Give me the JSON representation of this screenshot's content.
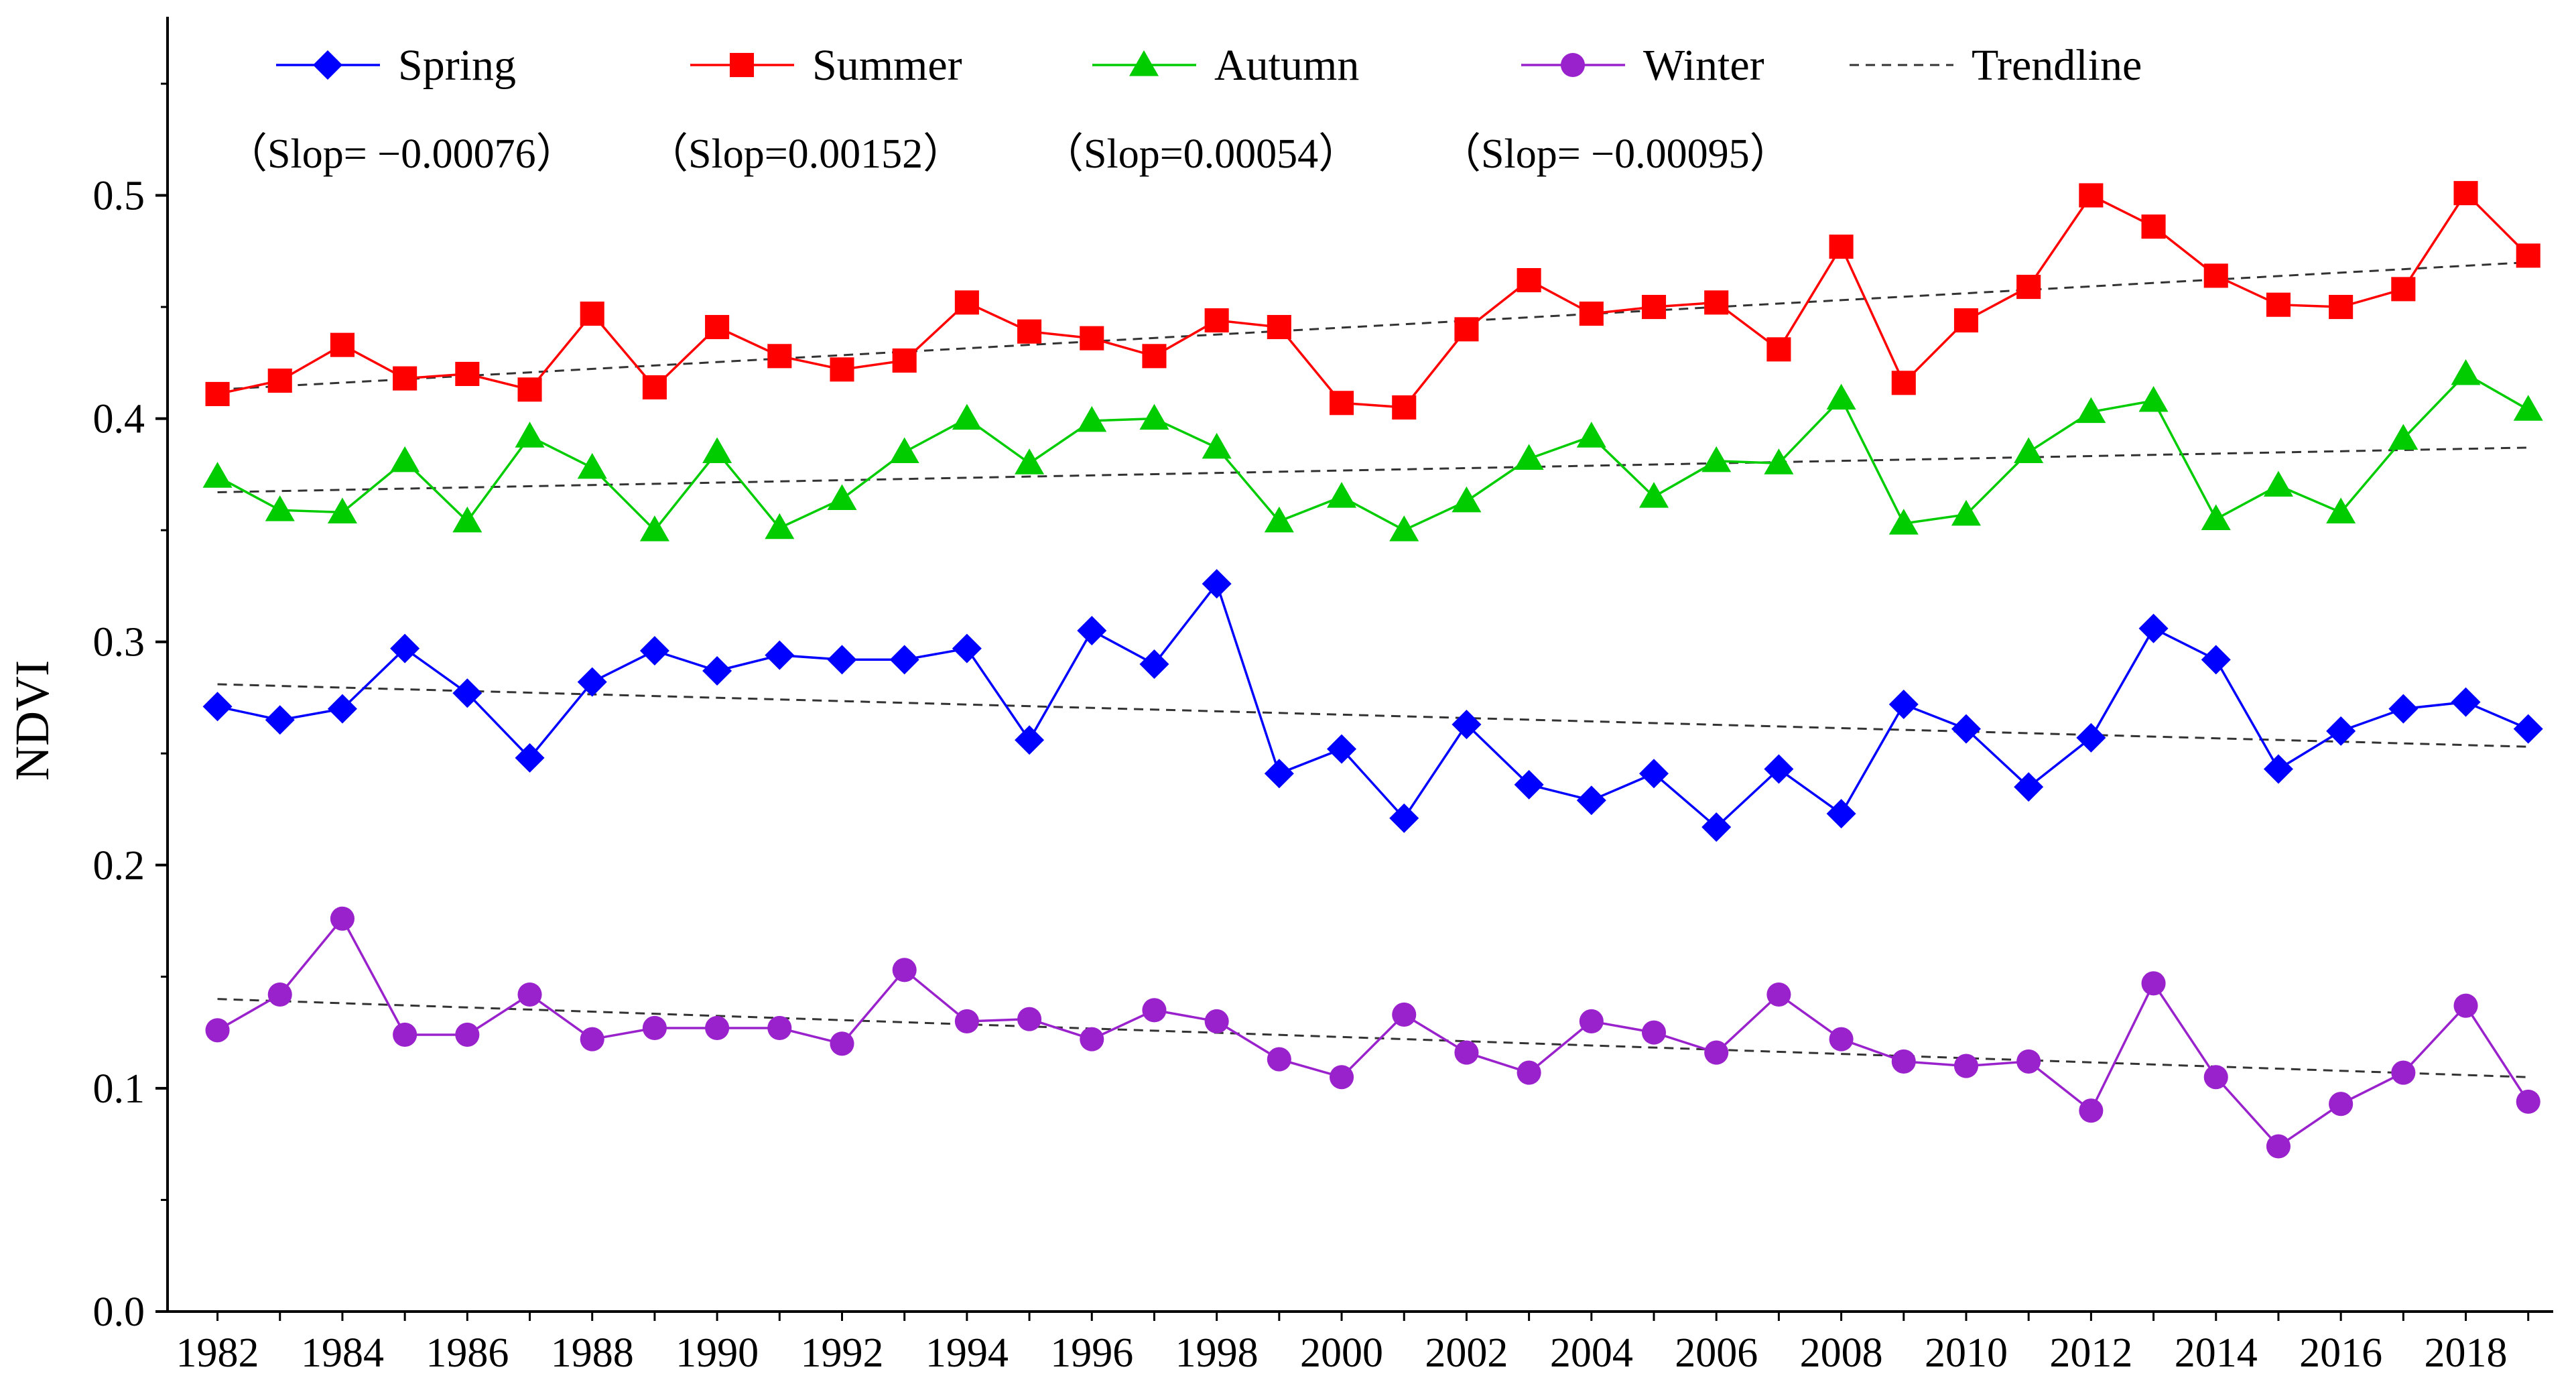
{
  "chart_data": {
    "type": "line",
    "title": "",
    "xlabel": "",
    "ylabel": "NDVI",
    "xlim": [
      1981.2,
      2019.4
    ],
    "ylim": [
      0.0,
      0.58
    ],
    "yticks": [
      0.0,
      0.1,
      0.2,
      0.3,
      0.4,
      0.5
    ],
    "ytick_labels": [
      "0.0",
      "0.1",
      "0.2",
      "0.3",
      "0.4",
      "0.5"
    ],
    "xticks": [
      1982,
      1984,
      1986,
      1988,
      1990,
      1992,
      1994,
      1996,
      1998,
      2000,
      2002,
      2004,
      2006,
      2008,
      2010,
      2012,
      2014,
      2016,
      2018
    ],
    "xtick_labels": [
      "1982",
      "1984",
      "1986",
      "1988",
      "1990",
      "1992",
      "1994",
      "1996",
      "1998",
      "2000",
      "2002",
      "2004",
      "2006",
      "2008",
      "2010",
      "2012",
      "2014",
      "2016",
      "2018"
    ],
    "x": [
      1982,
      1983,
      1984,
      1985,
      1986,
      1987,
      1988,
      1989,
      1990,
      1991,
      1992,
      1993,
      1994,
      1995,
      1996,
      1997,
      1998,
      1999,
      2000,
      2001,
      2002,
      2003,
      2004,
      2005,
      2006,
      2007,
      2008,
      2009,
      2010,
      2011,
      2012,
      2013,
      2014,
      2015,
      2016,
      2017,
      2018,
      2019
    ],
    "series": [
      {
        "name": "Spring",
        "color": "#0000ff",
        "marker": "diamond",
        "slope_label": "（Slop= −0.00076）",
        "trend": [
          0.281,
          0.253
        ],
        "values": [
          0.271,
          0.265,
          0.27,
          0.297,
          0.277,
          0.248,
          0.282,
          0.296,
          0.287,
          0.294,
          0.292,
          0.292,
          0.297,
          0.256,
          0.305,
          0.29,
          0.326,
          0.241,
          0.252,
          0.221,
          0.263,
          0.236,
          0.229,
          0.241,
          0.217,
          0.243,
          0.223,
          0.272,
          0.261,
          0.235,
          0.257,
          0.306,
          0.292,
          0.243,
          0.26,
          0.27,
          0.273,
          0.261
        ]
      },
      {
        "name": "Summer",
        "color": "#ff0000",
        "marker": "square",
        "slope_label": "（Slop=0.00152）",
        "trend": [
          0.413,
          0.47
        ],
        "values": [
          0.411,
          0.417,
          0.433,
          0.418,
          0.42,
          0.413,
          0.447,
          0.414,
          0.441,
          0.428,
          0.422,
          0.426,
          0.452,
          0.439,
          0.436,
          0.428,
          0.444,
          0.441,
          0.407,
          0.405,
          0.44,
          0.462,
          0.447,
          0.45,
          0.452,
          0.431,
          0.477,
          0.416,
          0.444,
          0.459,
          0.5,
          0.486,
          0.464,
          0.451,
          0.45,
          0.458,
          0.501,
          0.473
        ]
      },
      {
        "name": "Autumn",
        "color": "#00cc00",
        "marker": "triangle",
        "slope_label": "（Slop=0.00054）",
        "trend": [
          0.367,
          0.387
        ],
        "values": [
          0.374,
          0.359,
          0.358,
          0.381,
          0.354,
          0.392,
          0.378,
          0.35,
          0.385,
          0.351,
          0.364,
          0.385,
          0.4,
          0.38,
          0.399,
          0.4,
          0.387,
          0.354,
          0.365,
          0.35,
          0.363,
          0.382,
          0.392,
          0.365,
          0.381,
          0.38,
          0.409,
          0.353,
          0.357,
          0.385,
          0.403,
          0.408,
          0.355,
          0.37,
          0.358,
          0.391,
          0.42,
          0.404
        ]
      },
      {
        "name": "Winter",
        "color": "#9922cc",
        "marker": "circle",
        "slope_label": "（Slop= −0.00095）",
        "trend": [
          0.14,
          0.105
        ],
        "values": [
          0.126,
          0.142,
          0.176,
          0.124,
          0.124,
          0.142,
          0.122,
          0.127,
          0.127,
          0.127,
          0.12,
          0.153,
          0.13,
          0.131,
          0.122,
          0.135,
          0.13,
          0.113,
          0.105,
          0.133,
          0.116,
          0.107,
          0.13,
          0.125,
          0.116,
          0.142,
          0.122,
          0.112,
          0.11,
          0.112,
          0.09,
          0.147,
          0.105,
          0.074,
          0.093,
          0.107,
          0.137,
          0.094
        ]
      }
    ],
    "trendline_legend": {
      "name": "Trendline",
      "color": "#333333",
      "style": "dashed"
    }
  }
}
